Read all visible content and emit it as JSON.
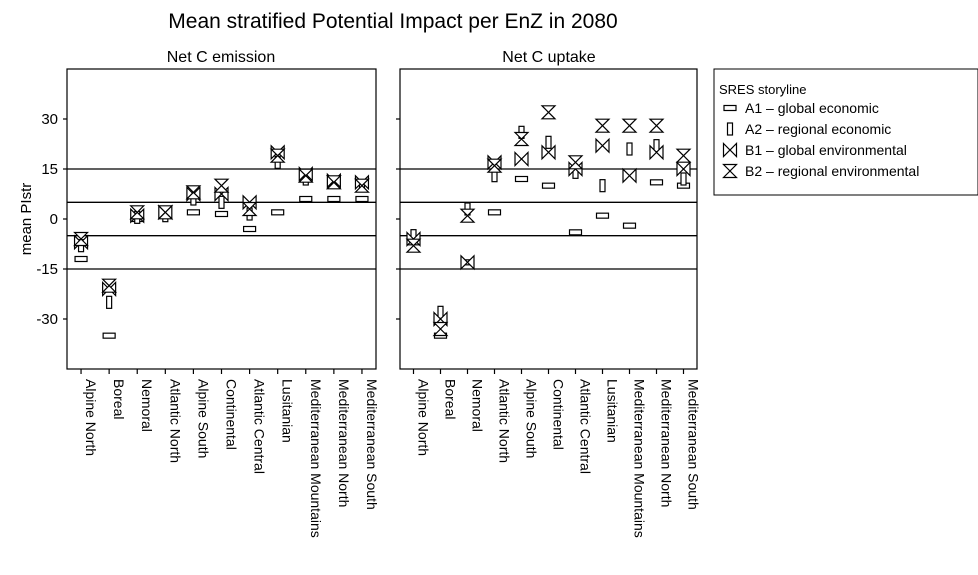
{
  "chart_data": {
    "type": "scatter",
    "title": "Mean stratified Potential Impact per EnZ in 2080",
    "ylabel": "mean PIstr",
    "ylim": [
      -45,
      45
    ],
    "yticks": [
      -30,
      -15,
      0,
      15,
      30
    ],
    "reference_lines": [
      -15,
      -5,
      5,
      15
    ],
    "grid": false,
    "legend_placement": "right",
    "categories": [
      "Alpine North",
      "Boreal",
      "Nemoral",
      "Atlantic North",
      "Alpine South",
      "Continental",
      "Atlantic Central",
      "Lusitanian",
      "Mediterranean Mountains",
      "Mediterranean North",
      "Mediterranean South"
    ],
    "legend": {
      "title": "SRES storyline",
      "entries": [
        {
          "id": "A1",
          "label": "A1 – global economic",
          "marker": "wide-rect"
        },
        {
          "id": "A2",
          "label": "A2 – regional economic",
          "marker": "tall-rect"
        },
        {
          "id": "B1",
          "label": "B1 – global environmental",
          "marker": "bowtie"
        },
        {
          "id": "B2",
          "label": "B2 – regional environmental",
          "marker": "hourglass"
        }
      ]
    },
    "panels": [
      {
        "title": "Net C emission",
        "series": [
          {
            "id": "A1",
            "values": [
              -12,
              -35,
              0,
              1,
              2,
              1.5,
              -3,
              2,
              6,
              6,
              6
            ]
          },
          {
            "id": "A2",
            "values": [
              -8,
              -25,
              0.5,
              1,
              6,
              5,
              1.5,
              17,
              12,
              11,
              10
            ]
          },
          {
            "id": "B1",
            "values": [
              -7,
              -21,
              1,
              2,
              7.5,
              7.5,
              5,
              20,
              13.5,
              11.5,
              11
            ]
          },
          {
            "id": "B2",
            "values": [
              -6,
              -20,
              2,
              2,
              8,
              10,
              3,
              19,
              13,
              11,
              10
            ]
          }
        ]
      },
      {
        "title": "Net C uptake",
        "series": [
          {
            "id": "A1",
            "values": [
              -7,
              -35,
              -13,
              2,
              12,
              10,
              -4,
              1,
              -2,
              11,
              10
            ]
          },
          {
            "id": "A2",
            "values": [
              -5,
              -28,
              3,
              13,
              26,
              23,
              14,
              10,
              21,
              22,
              12
            ]
          },
          {
            "id": "B1",
            "values": [
              -6,
              -30,
              -13,
              17,
              18,
              20,
              15,
              22,
              13,
              20,
              15
            ]
          },
          {
            "id": "B2",
            "values": [
              -8,
              -33,
              1,
              16,
              24,
              32,
              17,
              28,
              28,
              28,
              19
            ]
          }
        ]
      }
    ]
  }
}
